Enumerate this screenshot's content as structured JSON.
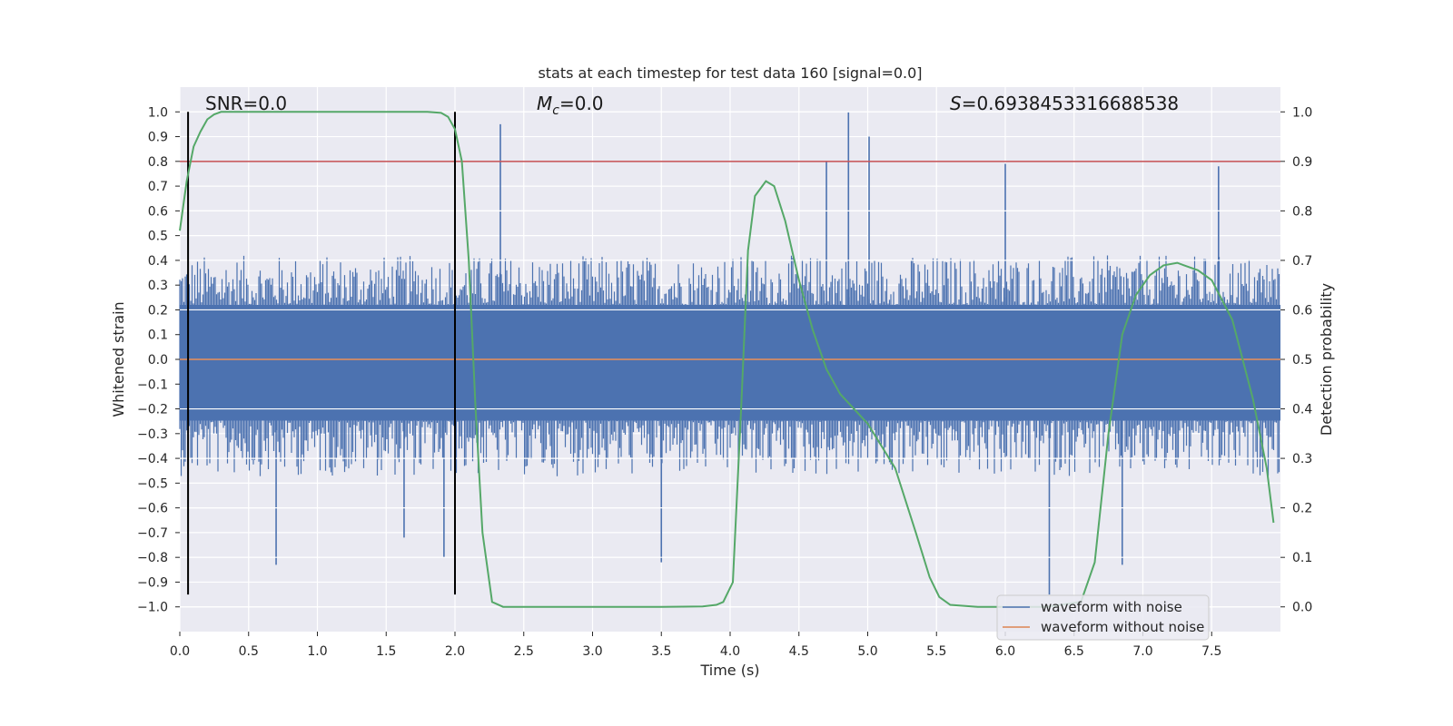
{
  "chart_data": {
    "type": "line",
    "title": "stats at each timestep for test data 160 [signal=0.0]",
    "xlabel": "Time (s)",
    "ylabel_left": "Whitened strain",
    "ylabel_right": "Detection probability",
    "xlim": [
      0.0,
      8.0
    ],
    "ylim_left": [
      -1.1,
      1.1
    ],
    "ylim_right": [
      -0.05,
      1.05
    ],
    "x_ticks": [
      0.0,
      0.5,
      1.0,
      1.5,
      2.0,
      2.5,
      3.0,
      3.5,
      4.0,
      4.5,
      5.0,
      5.5,
      6.0,
      6.5,
      7.0,
      7.5
    ],
    "x_tick_labels": [
      "0.0",
      "0.5",
      "1.0",
      "1.5",
      "2.0",
      "2.5",
      "3.0",
      "3.5",
      "4.0",
      "4.5",
      "5.0",
      "5.5",
      "6.0",
      "6.5",
      "7.0",
      "7.5"
    ],
    "y_left_ticks": [
      1.0,
      0.9,
      0.8,
      0.7,
      0.6,
      0.5,
      0.4,
      0.3,
      0.2,
      0.1,
      0.0,
      -0.1,
      -0.2,
      -0.3,
      -0.4,
      -0.5,
      -0.6,
      -0.7,
      -0.8,
      -0.9,
      -1.0
    ],
    "y_left_tick_labels": [
      "1.0",
      "0.9",
      "0.8",
      "0.7",
      "0.6",
      "0.5",
      "0.4",
      "0.3",
      "0.2",
      "0.1",
      "0.0",
      "−0.1",
      "−0.2",
      "−0.3",
      "−0.4",
      "−0.5",
      "−0.6",
      "−0.7",
      "−0.8",
      "−0.9",
      "−1.0"
    ],
    "y_right_ticks": [
      1.0,
      0.9,
      0.8,
      0.7,
      0.6,
      0.5,
      0.4,
      0.3,
      0.2,
      0.1,
      0.0
    ],
    "y_right_tick_labels": [
      "1.0",
      "0.9",
      "0.8",
      "0.7",
      "0.6",
      "0.5",
      "0.4",
      "0.3",
      "0.2",
      "0.1",
      "0.0"
    ],
    "annotations": {
      "snr": "SNR=0.0",
      "mc_symbol": "M",
      "mc_sub": "c",
      "mc_value": "=0.0",
      "s_symbol": "S",
      "s_value": "=0.6938453316688538"
    },
    "series": [
      {
        "name": "waveform with noise",
        "axis": "left",
        "color": "#4c72b0",
        "kind": "noise",
        "envelope_upper": 0.4,
        "envelope_lower": -0.45,
        "spikes": [
          {
            "x": 2.33,
            "y": 0.95
          },
          {
            "x": 4.86,
            "y": 1.0
          },
          {
            "x": 5.01,
            "y": 0.9
          },
          {
            "x": 4.7,
            "y": 0.8
          },
          {
            "x": 6.32,
            "y": -0.95
          },
          {
            "x": 0.7,
            "y": -0.83
          },
          {
            "x": 1.63,
            "y": -0.72
          },
          {
            "x": 1.92,
            "y": -0.8
          },
          {
            "x": 3.5,
            "y": -0.82
          },
          {
            "x": 6.85,
            "y": -0.83
          },
          {
            "x": 7.55,
            "y": 0.78
          },
          {
            "x": 6.0,
            "y": 0.79
          }
        ]
      },
      {
        "name": "waveform without noise",
        "axis": "left",
        "color": "#dd8452",
        "x": [
          0.0,
          8.0
        ],
        "y": [
          0.0,
          0.0
        ]
      },
      {
        "name": "detection probability",
        "axis": "right",
        "color": "#55a868",
        "x": [
          0.0,
          0.05,
          0.1,
          0.15,
          0.2,
          0.25,
          0.3,
          0.4,
          0.6,
          1.0,
          1.5,
          1.8,
          1.9,
          1.95,
          2.0,
          2.05,
          2.1,
          2.15,
          2.2,
          2.27,
          2.35,
          2.5,
          3.0,
          3.5,
          3.8,
          3.9,
          3.95,
          4.02,
          4.08,
          4.13,
          4.18,
          4.26,
          4.32,
          4.4,
          4.5,
          4.6,
          4.7,
          4.8,
          5.0,
          5.2,
          5.35,
          5.45,
          5.52,
          5.6,
          5.8,
          6.0,
          6.3,
          6.55,
          6.65,
          6.75,
          6.85,
          6.95,
          7.05,
          7.15,
          7.25,
          7.3,
          7.4,
          7.5,
          7.65,
          7.8,
          7.9,
          7.95
        ],
        "y": [
          0.76,
          0.86,
          0.93,
          0.96,
          0.985,
          0.995,
          1.0,
          1.0,
          1.0,
          1.0,
          1.0,
          1.0,
          0.998,
          0.99,
          0.965,
          0.9,
          0.7,
          0.4,
          0.15,
          0.01,
          0.0,
          0.0,
          0.0,
          0.0,
          0.001,
          0.004,
          0.01,
          0.05,
          0.4,
          0.72,
          0.83,
          0.86,
          0.85,
          0.78,
          0.66,
          0.56,
          0.48,
          0.43,
          0.37,
          0.28,
          0.15,
          0.06,
          0.02,
          0.004,
          0.0,
          0.0,
          0.0,
          0.01,
          0.09,
          0.35,
          0.55,
          0.63,
          0.67,
          0.69,
          0.695,
          0.69,
          0.68,
          0.66,
          0.58,
          0.42,
          0.28,
          0.17
        ]
      }
    ],
    "hlines": [
      {
        "axis": "left",
        "y": 0.8,
        "color": "#c44e52"
      }
    ],
    "vlines": [
      {
        "x": 0.06,
        "ymin": -0.95,
        "ymax": 1.0,
        "color": "#000000"
      },
      {
        "x": 2.0,
        "ymin": -0.95,
        "ymax": 1.0,
        "color": "#000000"
      }
    ],
    "legend": {
      "location": "lower-right",
      "entries": [
        "waveform with noise",
        "waveform without noise"
      ]
    }
  }
}
